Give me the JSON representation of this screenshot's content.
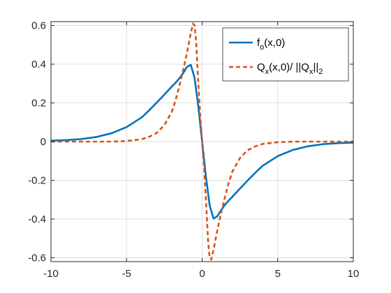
{
  "chart_data": {
    "type": "line",
    "xlim": [
      -10,
      10
    ],
    "ylim": [
      -0.62,
      0.62
    ],
    "x_ticks": [
      -10,
      -5,
      0,
      5,
      10
    ],
    "x_tick_labels": [
      "-10",
      "-5",
      "0",
      "5",
      "10"
    ],
    "y_ticks": [
      -0.6,
      -0.4,
      -0.2,
      0,
      0.2,
      0.4,
      0.6
    ],
    "y_tick_labels": [
      "-0.6",
      "-0.4",
      "-0.2",
      "0",
      "0.2",
      "0.4",
      "0.6"
    ],
    "grid": true,
    "legend_position": "top-right",
    "series": [
      {
        "name_main": "f",
        "name_sub": "o",
        "name_rest": "(x,0)",
        "color": "#0072BD",
        "style": "solid",
        "x": [
          -10,
          -9,
          -8,
          -7,
          -6,
          -5,
          -4,
          -3.5,
          -3,
          -2.5,
          -2,
          -1.75,
          -1.5,
          -1.25,
          -1,
          -0.75,
          -0.5,
          -0.25,
          0,
          0.25,
          0.5,
          0.75,
          1,
          1.25,
          1.5,
          1.75,
          2,
          2.5,
          3,
          3.5,
          4,
          5,
          6,
          7,
          8,
          9,
          10
        ],
        "y": [
          0.005,
          0.008,
          0.013,
          0.024,
          0.043,
          0.075,
          0.125,
          0.162,
          0.202,
          0.243,
          0.285,
          0.305,
          0.327,
          0.355,
          0.386,
          0.397,
          0.33,
          0.18,
          0.0,
          -0.18,
          -0.33,
          -0.397,
          -0.386,
          -0.355,
          -0.327,
          -0.305,
          -0.285,
          -0.243,
          -0.202,
          -0.162,
          -0.125,
          -0.075,
          -0.043,
          -0.024,
          -0.013,
          -0.008,
          -0.005
        ]
      },
      {
        "name_main": "Q",
        "name_sub": "x",
        "name_rest": "(x,0)/ ||Q",
        "name_sub2": "x",
        "name_rest2": "||",
        "name_sub3": "2",
        "color": "#D95319",
        "style": "dashed",
        "x": [
          -10,
          -8,
          -6,
          -5,
          -4,
          -3.5,
          -3,
          -2.5,
          -2,
          -1.75,
          -1.5,
          -1.25,
          -1,
          -0.75,
          -0.6,
          -0.5,
          -0.4,
          -0.25,
          -0.1,
          0,
          0.1,
          0.25,
          0.4,
          0.5,
          0.6,
          0.75,
          1,
          1.25,
          1.5,
          1.75,
          2,
          2.5,
          3,
          3.5,
          4,
          5,
          6,
          8,
          10
        ],
        "y": [
          0.0,
          0.0,
          0.0,
          0.003,
          0.012,
          0.025,
          0.045,
          0.085,
          0.155,
          0.215,
          0.29,
          0.37,
          0.46,
          0.56,
          0.61,
          0.6,
          0.52,
          0.3,
          0.1,
          0.0,
          -0.1,
          -0.3,
          -0.52,
          -0.6,
          -0.61,
          -0.56,
          -0.46,
          -0.37,
          -0.29,
          -0.215,
          -0.155,
          -0.085,
          -0.045,
          -0.025,
          -0.012,
          -0.003,
          0.0,
          0.0,
          0.0
        ]
      }
    ]
  }
}
